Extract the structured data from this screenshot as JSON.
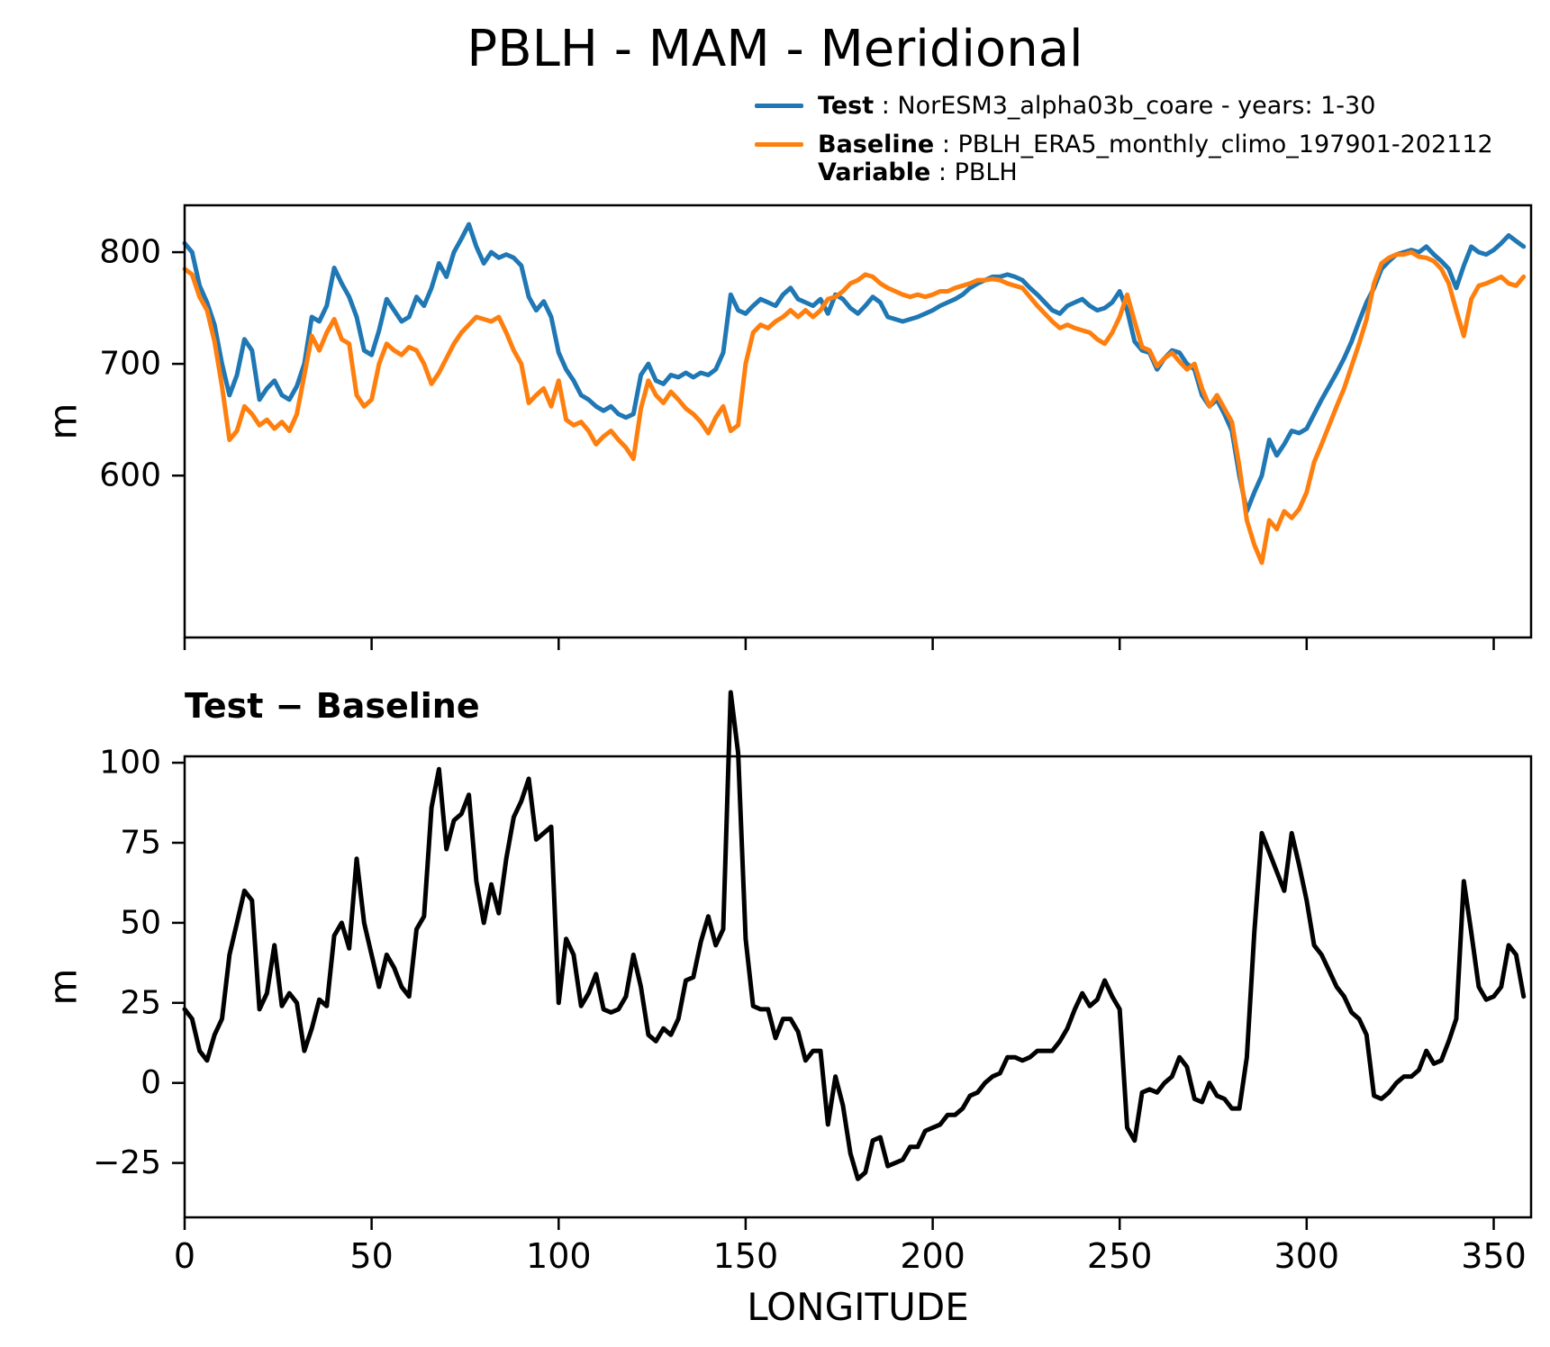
{
  "figure": {
    "title": "PBLH - MAM - Meridional",
    "subplot2_title": "Test − Baseline",
    "legend": [
      {
        "swatch_color": "#1f77b4",
        "label": "Test",
        "text": " : NorESM3_alpha03b_coare - years: 1-30"
      },
      {
        "swatch_color": "#ff7f0e",
        "label": "Baseline",
        "text": " : PBLH_ERA5_monthly_climo_197901-202112"
      },
      {
        "swatch_color": null,
        "label": "Variable",
        "text": " : PBLH"
      }
    ],
    "colors": {
      "test": "#1f77b4",
      "baseline": "#ff7f0e",
      "diff": "#000000"
    }
  },
  "chart_data": [
    {
      "type": "line",
      "title": "PBLH - MAM - Meridional",
      "xlabel": "",
      "ylabel": "m",
      "xlim": [
        0,
        360
      ],
      "ylim": [
        455,
        842
      ],
      "yticks": [
        600,
        700,
        800
      ],
      "xticks": [
        0,
        50,
        100,
        150,
        200,
        250,
        300,
        350
      ],
      "show_xtick_labels": false,
      "grid": false,
      "legend_position": "upper-right-above-axes",
      "x0": 0,
      "dx": 2,
      "series": [
        {
          "name": "Test",
          "legend": "NorESM3_alpha03b_coare - years: 1-30",
          "color": "#1f77b4",
          "values": [
            808,
            800,
            770,
            755,
            735,
            700,
            672,
            690,
            722,
            712,
            668,
            678,
            685,
            672,
            668,
            680,
            700,
            742,
            738,
            752,
            786,
            772,
            760,
            742,
            712,
            708,
            730,
            758,
            748,
            738,
            742,
            760,
            752,
            768,
            790,
            778,
            800,
            812,
            825,
            805,
            790,
            800,
            795,
            798,
            795,
            788,
            760,
            748,
            756,
            742,
            710,
            695,
            685,
            672,
            668,
            662,
            658,
            662,
            655,
            652,
            655,
            690,
            700,
            685,
            682,
            690,
            688,
            692,
            688,
            692,
            690,
            695,
            710,
            762,
            748,
            745,
            752,
            758,
            755,
            752,
            762,
            768,
            758,
            755,
            752,
            758,
            745,
            762,
            758,
            750,
            745,
            752,
            760,
            755,
            742,
            740,
            738,
            740,
            742,
            745,
            748,
            752,
            755,
            758,
            762,
            768,
            772,
            775,
            778,
            778,
            780,
            778,
            775,
            768,
            762,
            755,
            748,
            745,
            752,
            755,
            758,
            752,
            748,
            750,
            755,
            765,
            748,
            720,
            712,
            710,
            695,
            705,
            712,
            710,
            700,
            695,
            672,
            662,
            668,
            655,
            640,
            600,
            568,
            585,
            600,
            632,
            618,
            628,
            640,
            638,
            642,
            655,
            668,
            680,
            692,
            705,
            720,
            738,
            755,
            768,
            785,
            792,
            798,
            800,
            802,
            800,
            805,
            798,
            792,
            785,
            768,
            788,
            805,
            800,
            798,
            802,
            808,
            815,
            810,
            805
          ]
        },
        {
          "name": "Baseline",
          "legend": "PBLH_ERA5_monthly_climo_197901-202112",
          "color": "#ff7f0e",
          "values": [
            785,
            780,
            760,
            748,
            720,
            680,
            632,
            640,
            662,
            655,
            645,
            650,
            642,
            648,
            640,
            655,
            690,
            725,
            712,
            728,
            740,
            722,
            718,
            672,
            662,
            668,
            700,
            718,
            712,
            708,
            715,
            712,
            700,
            682,
            692,
            705,
            718,
            728,
            735,
            742,
            740,
            738,
            742,
            728,
            712,
            700,
            665,
            672,
            678,
            662,
            685,
            650,
            645,
            648,
            640,
            628,
            635,
            640,
            632,
            625,
            615,
            660,
            685,
            672,
            665,
            675,
            668,
            660,
            655,
            648,
            638,
            652,
            662,
            640,
            645,
            700,
            728,
            735,
            732,
            738,
            742,
            748,
            742,
            748,
            742,
            748,
            758,
            760,
            765,
            772,
            775,
            780,
            778,
            772,
            768,
            765,
            762,
            760,
            762,
            760,
            762,
            765,
            765,
            768,
            770,
            772,
            775,
            775,
            776,
            775,
            772,
            770,
            768,
            760,
            752,
            745,
            738,
            732,
            735,
            732,
            730,
            728,
            722,
            718,
            728,
            742,
            762,
            738,
            715,
            712,
            698,
            705,
            710,
            702,
            695,
            700,
            678,
            662,
            672,
            660,
            648,
            608,
            560,
            538,
            522,
            560,
            552,
            568,
            562,
            570,
            585,
            612,
            628,
            645,
            662,
            678,
            698,
            718,
            740,
            772,
            790,
            795,
            798,
            798,
            800,
            796,
            795,
            792,
            785,
            772,
            748,
            725,
            758,
            770,
            772,
            775,
            778,
            772,
            770,
            778
          ]
        }
      ],
      "variable": "PBLH"
    },
    {
      "type": "line",
      "title": "Test − Baseline",
      "xlabel": "LONGITUDE",
      "ylabel": "m",
      "xlim": [
        0,
        360
      ],
      "ylim": [
        -42,
        102
      ],
      "yticks": [
        -25,
        0,
        25,
        50,
        75,
        100
      ],
      "xticks": [
        0,
        50,
        100,
        150,
        200,
        250,
        300,
        350
      ],
      "show_xtick_labels": true,
      "grid": false,
      "x0": 0,
      "dx": 2,
      "series": [
        {
          "name": "Test − Baseline",
          "color": "#000000",
          "derived": "chart0.series0 minus chart0.series1"
        }
      ]
    }
  ]
}
